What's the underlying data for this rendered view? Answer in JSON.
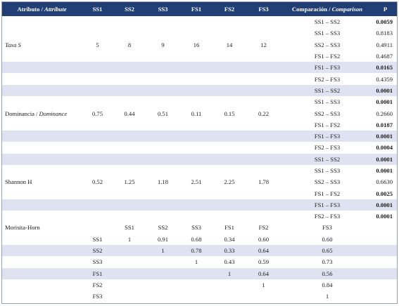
{
  "header": {
    "attribute": [
      {
        "text": "Atributo /"
      },
      {
        "text": "Attribute",
        "italic": true
      }
    ],
    "columns": [
      "SS1",
      "SS2",
      "SS3",
      "FS1",
      "FS2",
      "FS3"
    ],
    "comparison": [
      {
        "text": "Comparación /"
      },
      {
        "text": "Comparison",
        "italic": true
      }
    ],
    "p": "P"
  },
  "groups": [
    {
      "attribute": [
        {
          "text": "Taxa S",
          "italic": true
        }
      ],
      "values": [
        "5",
        "8",
        "9",
        "16",
        "14",
        "12"
      ],
      "comparisons": [
        {
          "pair": "SS1 – SS2",
          "p": "0.0059",
          "bold": true
        },
        {
          "pair": "SS1 – SS3",
          "p": "0.8183",
          "bold": false
        },
        {
          "pair": "SS2 – SS3",
          "p": "0.4911",
          "bold": false
        },
        {
          "pair": "FS1 – FS2",
          "p": "0.4687",
          "bold": false
        },
        {
          "pair": "FS1 – FS3",
          "p": "0.0165",
          "bold": true
        },
        {
          "pair": "FS2 – FS3",
          "p": "0.4359",
          "bold": false
        }
      ]
    },
    {
      "attribute": [
        {
          "text": "Dominancia /"
        },
        {
          "text": "Dominance",
          "italic": true
        }
      ],
      "values": [
        "0.75",
        "0.44",
        "0.51",
        "0.11",
        "0.15",
        "0.22"
      ],
      "comparisons": [
        {
          "pair": "SS1 – SS2",
          "p": "0.0001",
          "bold": true
        },
        {
          "pair": "SS1 – SS3",
          "p": "0.0001",
          "bold": true
        },
        {
          "pair": "SS2 – SS3",
          "p": "0.2660",
          "bold": false
        },
        {
          "pair": "FS1 – FS2",
          "p": "0.0187",
          "bold": true
        },
        {
          "pair": "FS1 – FS3",
          "p": "0.0001",
          "bold": true
        },
        {
          "pair": "FS2 – FS3",
          "p": "0.0004",
          "bold": true
        }
      ]
    },
    {
      "attribute": [
        {
          "text": "Shannon H"
        }
      ],
      "values": [
        "0.52",
        "1.25",
        "1.18",
        "2.51",
        "2.25",
        "1.78"
      ],
      "comparisons": [
        {
          "pair": "SS1 – SS2",
          "p": "0.0001",
          "bold": true
        },
        {
          "pair": "SS1 – SS3",
          "p": "0.0001",
          "bold": true
        },
        {
          "pair": "SS2 – SS3",
          "p": "0.6630",
          "bold": false
        },
        {
          "pair": "FS1 – FS2",
          "p": "0.0025",
          "bold": true
        },
        {
          "pair": "FS1 – FS3",
          "p": "0.0001",
          "bold": true
        },
        {
          "pair": "FS2 – FS3",
          "p": "0.0001",
          "bold": true
        }
      ]
    }
  ],
  "morisita": {
    "title": "Morisita-Horn",
    "columns": [
      "SS1",
      "SS2",
      "SS3",
      "FS1",
      "FS2",
      "FS3"
    ],
    "rows": [
      {
        "label": "SS1",
        "values": [
          "1",
          "0.91",
          "0.68",
          "0.34",
          "0.60",
          "0.60"
        ]
      },
      {
        "label": "SS2",
        "values": [
          null,
          "1",
          "0.78",
          "0.33",
          "0.64",
          "0.65"
        ]
      },
      {
        "label": "SS3",
        "values": [
          null,
          null,
          "1",
          "0.43",
          "0.59",
          "0.73"
        ]
      },
      {
        "label": "FS1",
        "values": [
          null,
          null,
          null,
          "1",
          "0.64",
          "0.56"
        ]
      },
      {
        "label": "FS2",
        "values": [
          null,
          null,
          null,
          null,
          "1",
          "0.84"
        ]
      },
      {
        "label": "FS3",
        "values": [
          null,
          null,
          null,
          null,
          null,
          "1"
        ]
      }
    ]
  }
}
